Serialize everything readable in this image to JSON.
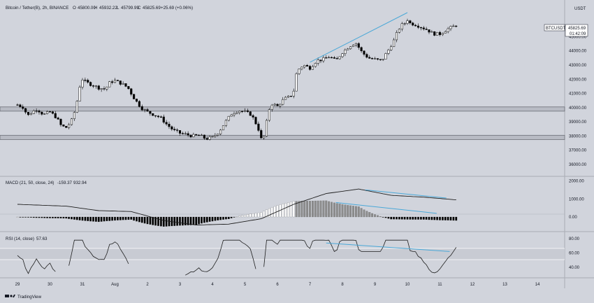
{
  "header": {
    "symbol": "Bitcoin / Tether(B), 2h, BINANCE",
    "o_label": "O",
    "o_value": "45800.00",
    "h_label": "H",
    "h_value": "45932.22",
    "l_label": "L",
    "l_value": "45799.99",
    "c_label": "C",
    "c_value": "45825.69",
    "change": "+25.69 (+0.06%)"
  },
  "price_axis": {
    "currency": "USDT",
    "ticks": [
      "45000.00",
      "44000.00",
      "43000.00",
      "42000.00",
      "41000.00",
      "40000.00",
      "39000.00",
      "38000.00",
      "37000.00",
      "36000.00"
    ]
  },
  "price_badge": {
    "symbol": "BTCUSDT",
    "price": "45825.69",
    "countdown": "01:42:09"
  },
  "macd_panel": {
    "label": "MACD (21, 50, close, 24)",
    "v1": "-159.37",
    "v2": "932.94",
    "ticks": [
      "2000.00",
      "1000.00",
      "0.00"
    ]
  },
  "rsi_panel": {
    "label": "RSI (14, close)",
    "value": "57.63",
    "ticks": [
      "80.00",
      "60.00",
      "40.00"
    ]
  },
  "time_axis": [
    "29",
    "30",
    "31",
    "Aug",
    "2",
    "3",
    "4",
    "5",
    "6",
    "7",
    "8",
    "9",
    "10",
    "11",
    "12",
    "13",
    "14"
  ],
  "footer": {
    "brand": "TradingView"
  },
  "colors": {
    "background": "#d1d4dc",
    "candle": "#000000",
    "trendline": "#4aa8d8",
    "zone": "#b8bbc4",
    "rsi_band": "#c8cbd3"
  },
  "chart_data": [
    {
      "type": "candlestick",
      "title": "Bitcoin / Tether(B), 2h, BINANCE",
      "x_axis": [
        "29",
        "30",
        "31",
        "Aug",
        "2",
        "3",
        "4",
        "5",
        "6",
        "7",
        "8",
        "9",
        "10",
        "11",
        "12",
        "13",
        "14"
      ],
      "y_range": [
        35500,
        46700
      ],
      "close_path": [
        [
          0,
          40200
        ],
        [
          0.2,
          40000
        ],
        [
          0.3,
          39400
        ],
        [
          0.45,
          39700
        ],
        [
          0.6,
          39900
        ],
        [
          0.8,
          39500
        ],
        [
          1.0,
          39700
        ],
        [
          1.2,
          39300
        ],
        [
          1.35,
          38700
        ],
        [
          1.5,
          38600
        ],
        [
          1.65,
          39000
        ],
        [
          1.8,
          40000
        ],
        [
          1.9,
          41400
        ],
        [
          2.0,
          42000
        ],
        [
          2.1,
          41800
        ],
        [
          2.3,
          41600
        ],
        [
          2.5,
          41400
        ],
        [
          2.7,
          41300
        ],
        [
          2.85,
          41800
        ],
        [
          3.0,
          41900
        ],
        [
          3.2,
          41700
        ],
        [
          3.4,
          41400
        ],
        [
          3.55,
          40800
        ],
        [
          3.7,
          40300
        ],
        [
          3.85,
          39900
        ],
        [
          4.0,
          39700
        ],
        [
          4.2,
          39500
        ],
        [
          4.4,
          39300
        ],
        [
          4.6,
          38800
        ],
        [
          4.8,
          38400
        ],
        [
          5.0,
          38200
        ],
        [
          5.2,
          38100
        ],
        [
          5.4,
          38000
        ],
        [
          5.6,
          38050
        ],
        [
          5.8,
          37800
        ],
        [
          6.0,
          37900
        ],
        [
          6.2,
          38300
        ],
        [
          6.4,
          39000
        ],
        [
          6.6,
          39600
        ],
        [
          6.8,
          39800
        ],
        [
          7.0,
          39700
        ],
        [
          7.2,
          39500
        ],
        [
          7.4,
          38600
        ],
        [
          7.5,
          37800
        ],
        [
          7.6,
          38000
        ],
        [
          7.7,
          39500
        ],
        [
          7.8,
          40300
        ],
        [
          8.0,
          40100
        ],
        [
          8.2,
          40600
        ],
        [
          8.4,
          40800
        ],
        [
          8.5,
          41200
        ],
        [
          8.6,
          42600
        ],
        [
          8.8,
          43000
        ],
        [
          9.0,
          42800
        ],
        [
          9.2,
          43300
        ],
        [
          9.4,
          43400
        ],
        [
          9.6,
          43600
        ],
        [
          9.8,
          43300
        ],
        [
          10.0,
          43900
        ],
        [
          10.2,
          44300
        ],
        [
          10.4,
          44600
        ],
        [
          10.6,
          43900
        ],
        [
          10.8,
          43500
        ],
        [
          11.0,
          43400
        ],
        [
          11.2,
          43300
        ],
        [
          11.4,
          44000
        ],
        [
          11.6,
          44800
        ],
        [
          11.7,
          45400
        ],
        [
          11.8,
          45800
        ],
        [
          11.9,
          45900
        ],
        [
          12.0,
          46200
        ],
        [
          12.1,
          45900
        ],
        [
          12.2,
          45900
        ],
        [
          12.4,
          45700
        ],
        [
          12.6,
          45500
        ],
        [
          12.8,
          45200
        ],
        [
          13.0,
          45200
        ],
        [
          13.2,
          45500
        ],
        [
          13.4,
          45700
        ],
        [
          13.5,
          45826
        ]
      ],
      "support_zones": [
        [
          39750,
          40050
        ],
        [
          37750,
          38050
        ]
      ],
      "trendline": [
        [
          9.0,
          43200
        ],
        [
          12.0,
          46700
        ]
      ]
    },
    {
      "type": "bar",
      "title": "MACD (21, 50, close, 24)",
      "y_range": [
        -700,
        2100
      ],
      "histogram_note": "histogram positive from Aug 5 to Aug 9, then turns negative",
      "macd_line": [
        [
          0,
          700
        ],
        [
          1.5,
          600
        ],
        [
          2.5,
          350
        ],
        [
          3.5,
          300
        ],
        [
          4.5,
          -200
        ],
        [
          5.5,
          -450
        ],
        [
          6.5,
          -400
        ],
        [
          7.5,
          -100
        ],
        [
          8.5,
          700
        ],
        [
          9.5,
          1300
        ],
        [
          10.5,
          1550
        ],
        [
          11.5,
          1200
        ],
        [
          12.5,
          1100
        ],
        [
          13.5,
          950
        ]
      ],
      "macd_trendline": [
        [
          10.7,
          1500
        ],
        [
          13.2,
          1050
        ]
      ],
      "histogram_trendline": [
        [
          9.8,
          800
        ],
        [
          12.9,
          200
        ]
      ]
    },
    {
      "type": "line",
      "title": "RSI (14, close)",
      "y_range": [
        28,
        88
      ],
      "band": [
        50,
        70
      ],
      "trendline": [
        [
          9.5,
          74
        ],
        [
          13.3,
          62
        ]
      ]
    }
  ]
}
